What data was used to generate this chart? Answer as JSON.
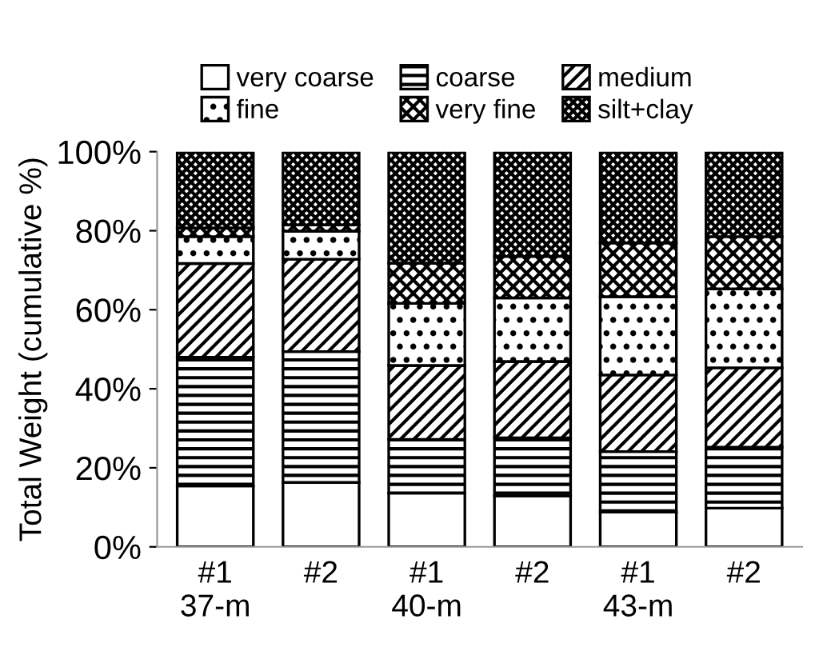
{
  "chart_data": {
    "type": "bar",
    "stacked": true,
    "ylabel": "Total Weight (cumulative %)",
    "categories": [
      "#1\n37-m",
      "#2",
      "#1\n40-m",
      "#2",
      "#1\n43-m",
      "#2"
    ],
    "series": [
      {
        "name": "very coarse",
        "color": "#ffffff",
        "values": [
          15.4,
          16.3,
          13.6,
          12.9,
          8.8,
          9.8
        ]
      },
      {
        "name": "coarse",
        "color": "#000000",
        "values": [
          32.6,
          33.1,
          13.6,
          14.7,
          15.3,
          15.4
        ]
      },
      {
        "name": "medium",
        "color": "#000000",
        "values": [
          23.7,
          23.4,
          18.7,
          19.3,
          19.4,
          20.1
        ]
      },
      {
        "name": "fine",
        "color": "#000000",
        "values": [
          6.8,
          7.1,
          15.7,
          16.1,
          19.8,
          20.0
        ]
      },
      {
        "name": "very fine",
        "color": "#000000",
        "values": [
          2.2,
          1.6,
          10.2,
          10.5,
          13.6,
          13.2
        ]
      },
      {
        "name": "silt+clay",
        "color": "#000000",
        "values": [
          19.3,
          18.5,
          28.2,
          26.5,
          23.1,
          21.5
        ]
      }
    ],
    "ylim": [
      0,
      100
    ],
    "yticks": [
      {
        "value": 0,
        "label": "0%"
      },
      {
        "value": 20,
        "label": "20%"
      },
      {
        "value": 40,
        "label": "40%"
      },
      {
        "value": 60,
        "label": "60%"
      },
      {
        "value": 80,
        "label": "80%"
      },
      {
        "value": 100,
        "label": "100%"
      }
    ],
    "legend": "top",
    "grid": false
  }
}
